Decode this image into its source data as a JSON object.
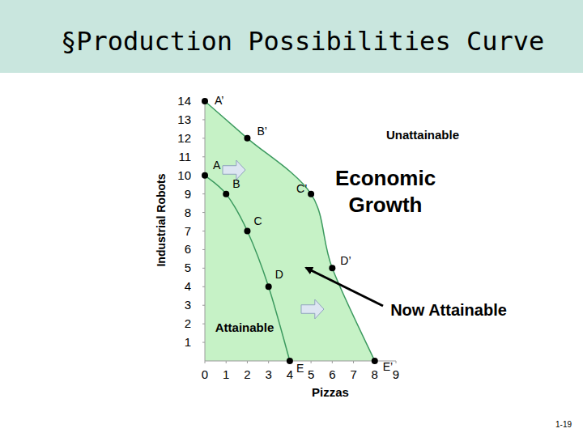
{
  "chart_data": {
    "type": "line",
    "title": "§Production Possibilities Curve",
    "x_label": "Pizzas",
    "y_label": "Industrial Robots",
    "xlim": [
      0,
      9
    ],
    "ylim": [
      0,
      14
    ],
    "xticks": [
      0,
      1,
      2,
      3,
      4,
      5,
      6,
      7,
      8,
      9
    ],
    "yticks": [
      1,
      2,
      3,
      4,
      5,
      6,
      7,
      8,
      9,
      10,
      11,
      12,
      13,
      14
    ],
    "grid": false,
    "series": [
      {
        "x": [
          0,
          1,
          2,
          3,
          4
        ],
        "values": [
          10,
          9,
          7,
          4,
          0
        ],
        "labels": [
          "A",
          "B",
          "C",
          "D",
          "E"
        ],
        "color": "#3c9a5f",
        "marker": "circle"
      },
      {
        "x": [
          0,
          2,
          5,
          6,
          8
        ],
        "values": [
          14,
          12,
          9,
          5,
          0
        ],
        "labels": [
          "A’",
          "B’",
          "C’",
          "D’",
          "E’"
        ],
        "color": "#3c9a5f",
        "marker": "circle"
      }
    ],
    "annotations": [
      "Unattainable",
      "Economic Growth",
      "Now Attainable",
      "Attainable"
    ],
    "page_number": "1-19"
  }
}
